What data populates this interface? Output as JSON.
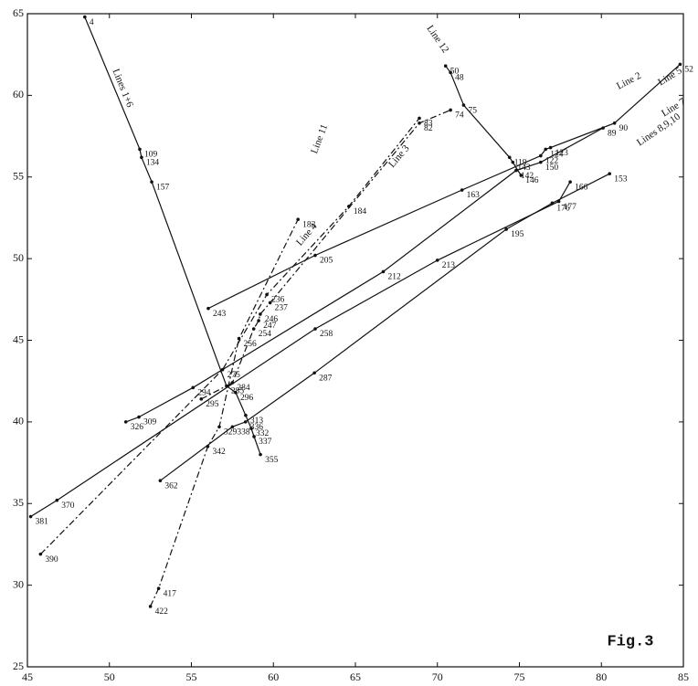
{
  "chart_data": {
    "type": "line",
    "annotation": "Fig.3",
    "xlim": [
      45,
      85
    ],
    "xticks": [
      45,
      50,
      55,
      60,
      65,
      70,
      75,
      80,
      85
    ],
    "ylim": [
      25,
      65
    ],
    "yticks": [
      25,
      30,
      35,
      40,
      45,
      50,
      55,
      60,
      65
    ],
    "color": "#111111",
    "series": [
      {
        "name": "Lines 1+6",
        "dashed": false,
        "x": [
          48.5,
          51.85,
          51.96,
          52.58,
          57.14,
          57.7,
          58.31,
          58.65,
          58.82,
          59.21
        ],
        "values": [
          64.8,
          56.7,
          56.2,
          54.7,
          42.2,
          41.8,
          40.4,
          39.6,
          39.1,
          38.0
        ],
        "point_labels": [
          "4",
          "109",
          "134",
          "157",
          "285",
          "296",
          "313",
          "332",
          "337",
          "355"
        ]
      },
      {
        "name": "Line 2",
        "dashed": false,
        "x": [
          56.03,
          62.55,
          71.5,
          76.3,
          76.6,
          76.9,
          80.8,
          84.8
        ],
        "values": [
          46.95,
          50.2,
          54.2,
          56.3,
          56.7,
          56.8,
          58.3,
          61.9
        ],
        "point_labels": [
          "243",
          "205",
          "163",
          "122",
          "124",
          "123",
          "90",
          "52"
        ]
      },
      {
        "name": "Line 12",
        "dashed": false,
        "x": [
          70.5,
          70.8,
          71.6,
          74.4,
          74.6,
          75.1
        ],
        "values": [
          61.8,
          61.4,
          59.4,
          56.2,
          55.9,
          55.1
        ],
        "point_labels": [
          "50",
          "48",
          "75",
          "119",
          "143",
          "146"
        ]
      },
      {
        "name": "Line 5",
        "dashed": false,
        "x": [
          51.0,
          51.8,
          55.1,
          66.7,
          74.8,
          76.3,
          80.1
        ],
        "values": [
          40.0,
          40.3,
          42.1,
          49.2,
          55.4,
          55.9,
          58.0
        ],
        "point_labels": [
          "326",
          "309",
          "294",
          "212",
          "142",
          "150",
          "89"
        ]
      },
      {
        "name": "Line 7",
        "dashed": false,
        "x": [
          45.2,
          46.8,
          62.55,
          70.0,
          77.4,
          78.1
        ],
        "values": [
          34.2,
          35.2,
          45.7,
          49.9,
          53.5,
          54.7
        ],
        "point_labels": [
          "381",
          "370",
          "258",
          "213",
          "177",
          "166"
        ]
      },
      {
        "name": "Lines 8,9,10",
        "dashed": false,
        "x": [
          53.1,
          57.5,
          58.3,
          62.5,
          74.2,
          77.0,
          80.5
        ],
        "values": [
          36.4,
          39.7,
          40.0,
          43.0,
          51.8,
          53.4,
          55.2
        ],
        "point_labels": [
          "362",
          "338",
          "336",
          "287",
          "195",
          "176",
          "153"
        ]
      },
      {
        "name": "Line 11",
        "dashed": true,
        "x": [
          52.5,
          53.0,
          56.0,
          56.7,
          57.9,
          61.5
        ],
        "values": [
          28.7,
          29.8,
          38.5,
          39.7,
          45.1,
          52.4
        ],
        "point_labels": [
          "422",
          "417",
          "342",
          "329",
          "256",
          "183"
        ]
      },
      {
        "name": "Line 4",
        "dashed": true,
        "x": [
          45.8,
          56.9,
          59.6,
          64.6,
          68.9
        ],
        "values": [
          31.9,
          43.2,
          47.8,
          53.2,
          58.6
        ],
        "point_labels": [
          "390",
          "275",
          "236",
          "184",
          "83"
        ]
      },
      {
        "name": "Line 3",
        "dashed": true,
        "x": [
          55.6,
          57.5,
          58.8,
          59.1,
          59.2,
          59.8,
          68.9,
          70.8
        ],
        "values": [
          41.4,
          42.4,
          45.7,
          46.2,
          46.6,
          47.3,
          58.3,
          59.1
        ],
        "point_labels": [
          "295",
          "284",
          "254",
          "247",
          "246",
          "237",
          "82",
          "74"
        ]
      }
    ]
  }
}
